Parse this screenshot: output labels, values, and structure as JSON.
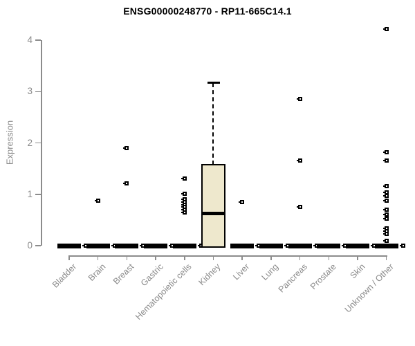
{
  "title": "ENSG00000248770 - RP11-665C14.1",
  "colors": {
    "box_fill": "#EEE8CD",
    "line": "#000000",
    "axis": "#8C8C8C",
    "text_gray": "#8A8A8A",
    "title": "#000000"
  },
  "chart_data": {
    "type": "boxplot",
    "title": "ENSG00000248770 - RP11-665C14.1",
    "xlabel": "",
    "ylabel": "Expression",
    "ylim": [
      0,
      4.3
    ],
    "yticks": [
      0,
      1,
      2,
      3,
      4
    ],
    "grid": false,
    "legend": false,
    "categories": [
      "Bladder",
      "Brain",
      "Breast",
      "Gastric",
      "Hematopoietic cells",
      "Kidney",
      "Liver",
      "Lung",
      "Pancreas",
      "Prostate",
      "Skin",
      "Unknown / Other"
    ],
    "boxes": [
      {
        "category": "Bladder",
        "q1": 0,
        "median": 0,
        "q3": 0,
        "whisker_low": 0,
        "whisker_high": 0,
        "outliers": [
          0
        ]
      },
      {
        "category": "Brain",
        "q1": 0,
        "median": 0,
        "q3": 0,
        "whisker_low": 0,
        "whisker_high": 0,
        "outliers": [
          0,
          0.88
        ]
      },
      {
        "category": "Breast",
        "q1": 0,
        "median": 0,
        "q3": 0,
        "whisker_low": 0,
        "whisker_high": 0,
        "outliers": [
          0,
          1.21,
          1.9
        ]
      },
      {
        "category": "Gastric",
        "q1": 0,
        "median": 0,
        "q3": 0,
        "whisker_low": 0,
        "whisker_high": 0,
        "outliers": [
          0
        ]
      },
      {
        "category": "Hematopoietic cells",
        "q1": 0,
        "median": 0,
        "q3": 0,
        "whisker_low": 0,
        "whisker_high": 0,
        "outliers": [
          0,
          1.31,
          1.01,
          0.9,
          0.85,
          0.8,
          0.75,
          0.7,
          0.64
        ]
      },
      {
        "category": "Kidney",
        "q1": 0,
        "median": 0.62,
        "q3": 1.58,
        "whisker_low": 0,
        "whisker_high": 3.17,
        "outliers": []
      },
      {
        "category": "Liver",
        "q1": 0,
        "median": 0,
        "q3": 0,
        "whisker_low": 0,
        "whisker_high": 0,
        "outliers": [
          0,
          0.85
        ]
      },
      {
        "category": "Lung",
        "q1": 0,
        "median": 0,
        "q3": 0,
        "whisker_low": 0,
        "whisker_high": 0,
        "outliers": [
          0
        ]
      },
      {
        "category": "Pancreas",
        "q1": 0,
        "median": 0,
        "q3": 0,
        "whisker_low": 0,
        "whisker_high": 0,
        "outliers": [
          0,
          2.85,
          1.66,
          0.76
        ]
      },
      {
        "category": "Prostate",
        "q1": 0,
        "median": 0,
        "q3": 0,
        "whisker_low": 0,
        "whisker_high": 0,
        "outliers": [
          0
        ]
      },
      {
        "category": "Skin",
        "q1": 0,
        "median": 0,
        "q3": 0,
        "whisker_low": 0,
        "whisker_high": 0,
        "outliers": [
          0
        ]
      },
      {
        "category": "Unknown / Other",
        "q1": 0,
        "median": 0,
        "q3": 0,
        "whisker_low": 0,
        "whisker_high": 0,
        "outliers": [
          0,
          4.21,
          1.82,
          1.66,
          1.16,
          1.04,
          0.97,
          0.88,
          0.7,
          0.61,
          0.52,
          0.34,
          0.28,
          0.23,
          0.1
        ]
      }
    ]
  }
}
